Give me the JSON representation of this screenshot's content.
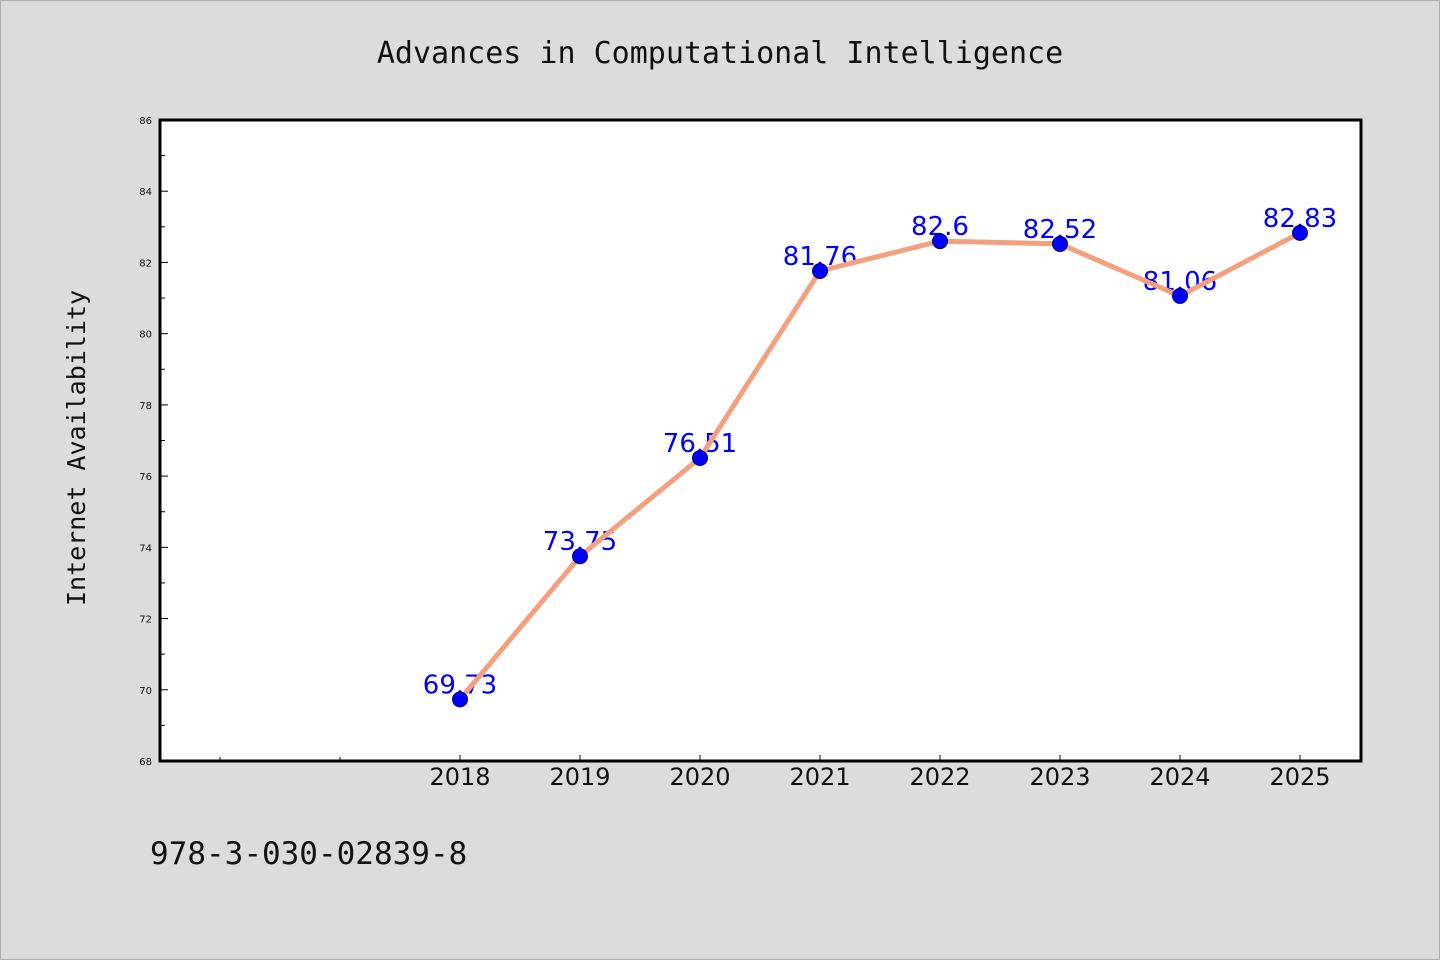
{
  "chart_data": {
    "type": "line",
    "title": "Advances in Computational Intelligence",
    "ylabel": "Internet Availability",
    "xlabel": "",
    "categories": [
      "2018",
      "2019",
      "2020",
      "2021",
      "2022",
      "2023",
      "2024",
      "2025"
    ],
    "values": [
      69.73,
      73.75,
      76.51,
      81.76,
      82.6,
      82.52,
      81.06,
      82.83
    ],
    "data_labels": [
      "69.73",
      "73.75",
      "76.51",
      "81.76",
      "82.6",
      "82.52",
      "81.06",
      "82.83"
    ],
    "ylim": [
      68,
      86
    ],
    "yticks": [
      "68",
      "70",
      "72",
      "74",
      "76",
      "78",
      "80",
      "82",
      "84",
      "86"
    ],
    "grid": false,
    "colors": {
      "line": "#f4a07f",
      "marker": "#0000ff",
      "data_label": "#0000ff",
      "plot_background": "#ffffff",
      "figure_background": "#dcdcdc"
    }
  },
  "footer": {
    "isbn": "978-3-030-02839-8"
  }
}
